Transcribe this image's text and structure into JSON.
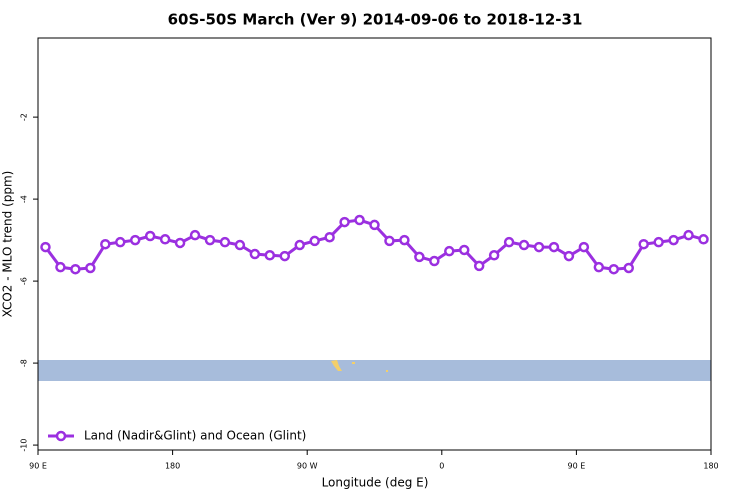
{
  "chart_data": {
    "type": "line",
    "title": "60S-50S March (Ver 9)   2014-09-06 to 2018-12-31",
    "x_label": "Longitude (deg E)",
    "y_label": "XCO2 - MLO trend (ppm)",
    "x": [
      95,
      105,
      115,
      125,
      135,
      145,
      155,
      165,
      175,
      185,
      195,
      205,
      215,
      225,
      235,
      245,
      255,
      265,
      275,
      285,
      295,
      305,
      315,
      325,
      335,
      345,
      355,
      365,
      375,
      385,
      395,
      405,
      415,
      425,
      435,
      445,
      455,
      465,
      475,
      485,
      495,
      505,
      515,
      525,
      535
    ],
    "series": [
      {
        "name": "Land (Nadir&Glint) and Ocean (Glint)",
        "color": "#9b30e0",
        "values": [
          -5.17,
          -5.66,
          -5.71,
          -5.68,
          -5.1,
          -5.05,
          -5.0,
          -4.9,
          -4.98,
          -5.07,
          -4.88,
          -5.0,
          -5.05,
          -5.12,
          -5.34,
          -5.37,
          -5.39,
          -5.12,
          -5.02,
          -4.93,
          -4.56,
          -4.51,
          -4.63,
          -5.02,
          -5.0,
          -5.41,
          -5.51,
          -5.27,
          -5.24,
          -5.63,
          -5.37,
          -5.05,
          -5.12,
          -5.17,
          -5.17,
          -5.39,
          -5.17,
          -5.66,
          -5.71,
          -5.68,
          -5.1,
          -5.05,
          -5.0,
          -4.88,
          -4.98
        ]
      }
    ],
    "xlim": [
      90,
      540
    ],
    "xticks": [
      {
        "value": 90,
        "label": "90 E"
      },
      180,
      {
        "value": 270,
        "label": "90 W"
      },
      {
        "value": 360,
        "label": "0"
      },
      {
        "value": 450,
        "label": "90 E"
      },
      {
        "value": 540,
        "label": "180"
      }
    ],
    "ylim": [
      -10.12,
      -0.07
    ],
    "yticks": [
      -10,
      -8,
      -6,
      -4,
      -2
    ],
    "legend": "bottom-left"
  }
}
